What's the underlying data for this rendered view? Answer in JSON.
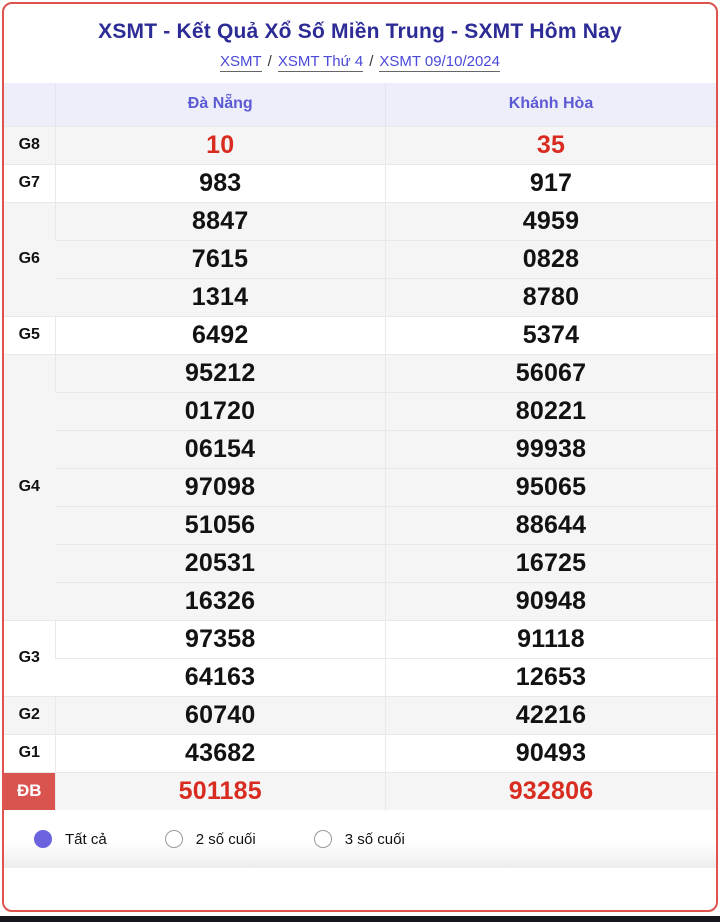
{
  "header": {
    "title": "XSMT - Kết Quả Xổ Số Miền Trung - SXMT Hôm Nay",
    "breadcrumb": [
      {
        "label": "XSMT"
      },
      {
        "label": "XSMT Thứ 4"
      },
      {
        "label": "XSMT 09/10/2024"
      }
    ],
    "separator": "/"
  },
  "table": {
    "columns": [
      "Đà Nẵng",
      "Khánh Hòa"
    ],
    "rows": [
      {
        "prize": "G8",
        "red_values": true,
        "special": false,
        "values": [
          [
            "10"
          ],
          [
            "35"
          ]
        ]
      },
      {
        "prize": "G7",
        "red_values": false,
        "special": false,
        "values": [
          [
            "983"
          ],
          [
            "917"
          ]
        ]
      },
      {
        "prize": "G6",
        "red_values": false,
        "special": false,
        "values": [
          [
            "8847",
            "7615",
            "1314"
          ],
          [
            "4959",
            "0828",
            "8780"
          ]
        ]
      },
      {
        "prize": "G5",
        "red_values": false,
        "special": false,
        "values": [
          [
            "6492"
          ],
          [
            "5374"
          ]
        ]
      },
      {
        "prize": "G4",
        "red_values": false,
        "special": false,
        "values": [
          [
            "95212",
            "01720",
            "06154",
            "97098",
            "51056",
            "20531",
            "16326"
          ],
          [
            "56067",
            "80221",
            "99938",
            "95065",
            "88644",
            "16725",
            "90948"
          ]
        ]
      },
      {
        "prize": "G3",
        "red_values": false,
        "special": false,
        "values": [
          [
            "97358",
            "64163"
          ],
          [
            "91118",
            "12653"
          ]
        ]
      },
      {
        "prize": "G2",
        "red_values": false,
        "special": false,
        "values": [
          [
            "60740"
          ],
          [
            "42216"
          ]
        ]
      },
      {
        "prize": "G1",
        "red_values": false,
        "special": false,
        "values": [
          [
            "43682"
          ],
          [
            "90493"
          ]
        ]
      },
      {
        "prize": "ĐB",
        "red_values": true,
        "special": true,
        "values": [
          [
            "501185"
          ],
          [
            "932806"
          ]
        ]
      }
    ]
  },
  "filters": {
    "options": [
      {
        "label": "Tất cả",
        "selected": true
      },
      {
        "label": "2 số cuối",
        "selected": false
      },
      {
        "label": "3 số cuối",
        "selected": false
      }
    ]
  },
  "colors": {
    "card_border": "#dd544e",
    "title_text": "#2d2b96",
    "link_text": "#4a49d8",
    "header_bg": "#eeeefa",
    "header_text": "#5c5ad4",
    "row_stripe": "#f5f5f5",
    "red_value": "#d92c20",
    "special_label_bg": "#d9534f",
    "radio_selected": "#6b63dd",
    "bottom_bar": "#16161e"
  }
}
